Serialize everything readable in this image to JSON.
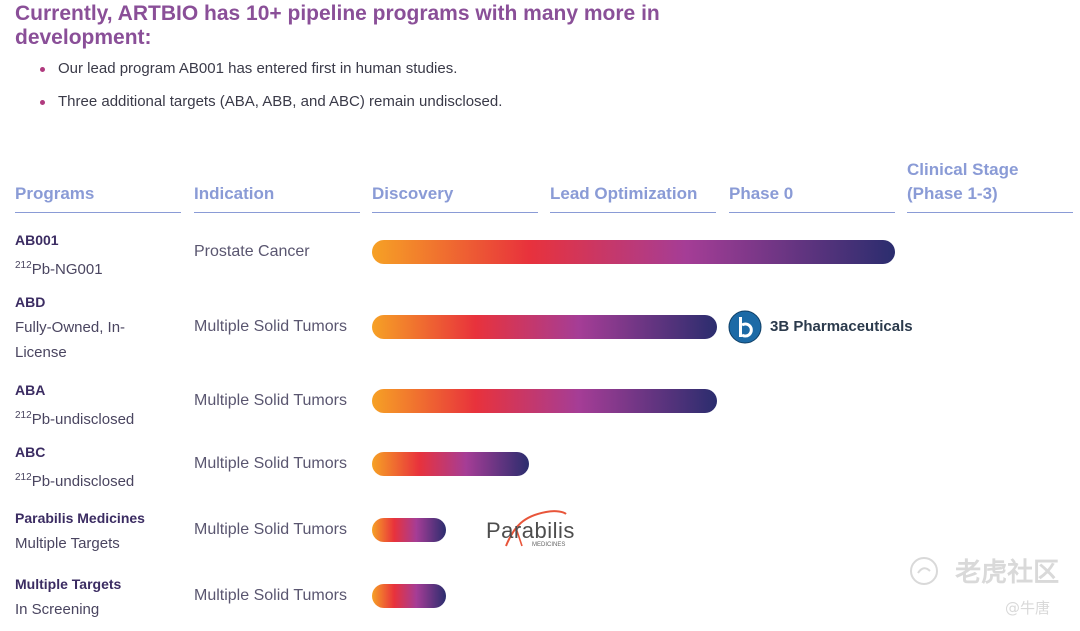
{
  "headline": "Currently, ARTBIO has 10+ pipeline programs with many more in development:",
  "bullets": [
    "Our lead program AB001 has entered first in human studies.",
    "Three additional targets (ABA, ABB, and ABC) remain undisclosed."
  ],
  "columns": {
    "programs": "Programs",
    "indication": "Indication",
    "discovery": "Discovery",
    "lead_opt": "Lead Optimization",
    "phase0": "Phase 0",
    "clinical_line1": "Clinical Stage",
    "clinical_line2": "(Phase 1-3)"
  },
  "chart_data": {
    "type": "bar",
    "stages": [
      "Discovery",
      "Lead Optimization",
      "Phase 0",
      "Clinical Stage (Phase 1-3)"
    ],
    "rows": [
      {
        "name": "AB001",
        "sub_sup": "212",
        "sub": "Pb-NG001",
        "indication": "Prostate Cancer",
        "progress_stages": 3.0
      },
      {
        "name": "ABD",
        "sub": "Fully-Owned, In-License",
        "indication": "Multiple Solid Tumors",
        "progress_stages": 2.0,
        "partner": "3B Pharmaceuticals"
      },
      {
        "name": "ABA",
        "sub_sup": "212",
        "sub": "Pb-undisclosed",
        "indication": "Multiple Solid Tumors",
        "progress_stages": 2.0
      },
      {
        "name": "ABC",
        "sub_sup": "212",
        "sub": "Pb-undisclosed",
        "indication": "Multiple Solid Tumors",
        "progress_stages": 0.95
      },
      {
        "name": "Parabilis Medicines",
        "sub": "Multiple Targets",
        "indication": "Multiple Solid Tumors",
        "progress_stages": 0.48,
        "partner": "Parabilis"
      },
      {
        "name": "Multiple Targets",
        "sub": "In Screening",
        "indication": "Multiple Solid Tumors",
        "progress_stages": 0.48
      }
    ],
    "gradient_colors": [
      "#f6a125",
      "#e8323c",
      "#a53d96",
      "#2b2d6e"
    ]
  },
  "partners": {
    "threeb": "3B Pharmaceuticals",
    "parabilis": "Parabilis",
    "parabilis_sub": "MEDICINES"
  },
  "watermark": {
    "brand": "老虎社区",
    "author": "@牛唐"
  }
}
